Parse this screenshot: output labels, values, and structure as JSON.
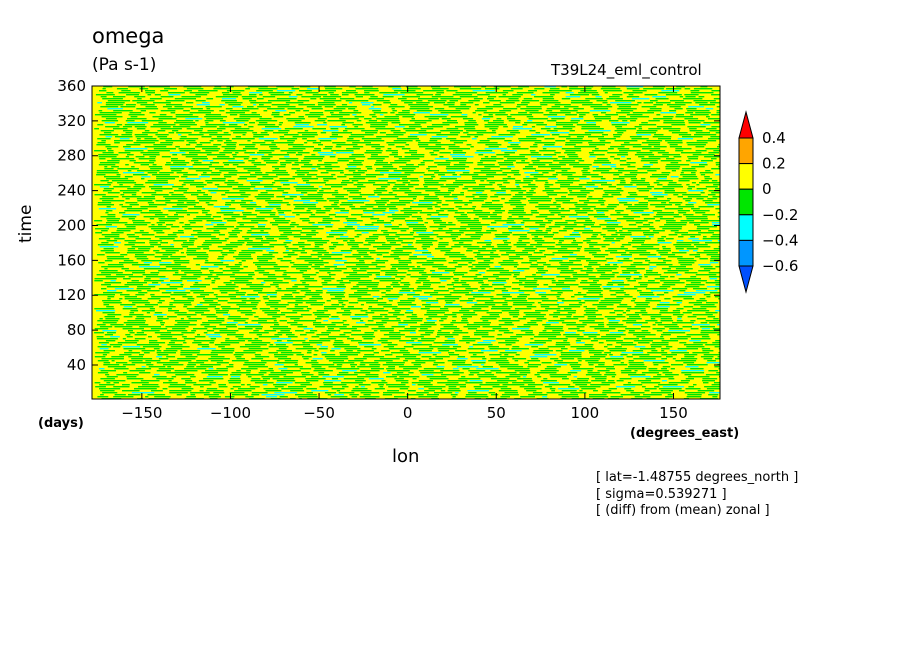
{
  "header": {
    "title": "omega",
    "units": "(Pa s-1)",
    "run_name": "T39L24_eml_control"
  },
  "notes": [
    "[ lat=-1.48755 degrees_north ]",
    "[ sigma=0.539271 ]",
    "[ (diff) from (mean) zonal ]"
  ],
  "chart_data": {
    "type": "heatmap",
    "title": "omega",
    "xlabel": "lon",
    "ylabel": "time",
    "x_unit": "(degrees_east)",
    "y_unit": "(days)",
    "xlim": [
      -178.125,
      176.25
    ],
    "ylim": [
      1,
      360
    ],
    "x_ticks": [
      -150,
      -100,
      -50,
      0,
      50,
      100,
      150
    ],
    "y_ticks": [
      40,
      80,
      120,
      160,
      200,
      240,
      280,
      320,
      360
    ],
    "colorbar": {
      "levels": [
        0.4,
        0.2,
        0,
        -0.2,
        -0.4,
        -0.6
      ],
      "colors": [
        "#ff0000",
        "#ffa500",
        "#ffff00",
        "#00e600",
        "#00ffff",
        "#0096ff",
        "#0050ff"
      ]
    },
    "field_summary": "noisy field mostly in 0 to 0.2 (yellow) and -0.2 to 0 (green) with sparse -0.4 to -0.2 (cyan) streaks"
  }
}
